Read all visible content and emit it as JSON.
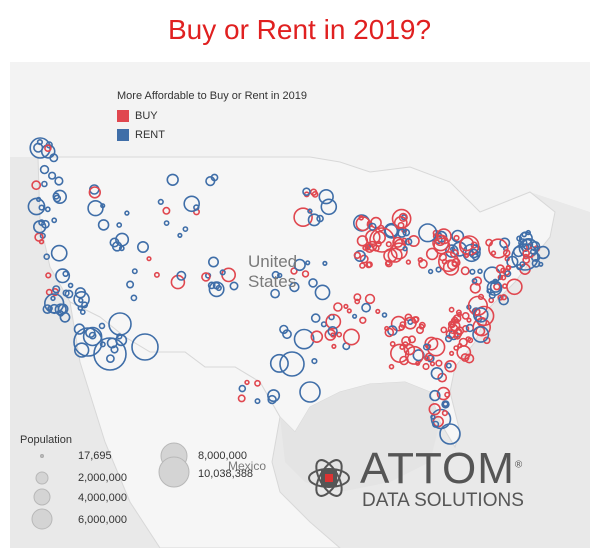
{
  "title": "Buy or Rent in 2019?",
  "colors": {
    "buy": "#e0474f",
    "rent": "#3f6ea8",
    "title": "#e02020",
    "map_bg": "#e9e9e9",
    "land": "#f4f4f4"
  },
  "legend": {
    "heading": "More Affordable to Buy or Rent in 2019",
    "items": [
      {
        "label": "BUY",
        "color": "#e0474f"
      },
      {
        "label": "RENT",
        "color": "#3f6ea8"
      }
    ]
  },
  "map_labels": {
    "country_main": "United States",
    "country_main_line1": "United",
    "country_main_line2": "States",
    "mexico": "Mexico"
  },
  "population_legend": {
    "title": "Population",
    "left": [
      "17,695",
      "2,000,000",
      "4,000,000",
      "6,000,000"
    ],
    "right": [
      "8,000,000",
      "10,038,388"
    ]
  },
  "logo": {
    "name": "ATTOM",
    "subtitle": "DATA SOLUTIONS",
    "registered": "®"
  }
}
